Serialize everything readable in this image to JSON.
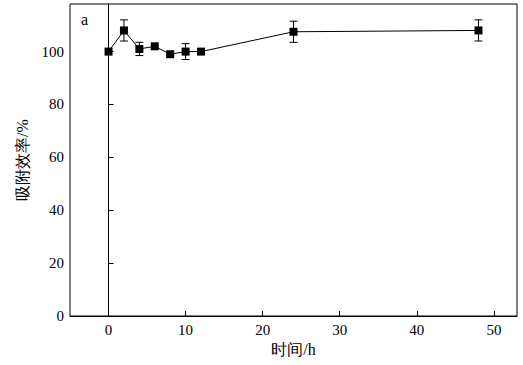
{
  "chart_data": {
    "type": "line",
    "title": "a",
    "x_label": "时间/h",
    "y_label": "吸附效率/%",
    "x": [
      0,
      2,
      4,
      6,
      8,
      10,
      12,
      24,
      48
    ],
    "series": [
      {
        "color": "#000000",
        "marker": "square",
        "values": [
          100,
          108,
          101,
          102,
          99,
          100,
          100,
          107.5,
          108
        ],
        "errors": [
          0,
          4,
          2.5,
          0,
          0,
          3,
          0,
          4,
          4
        ]
      }
    ],
    "xlim": [
      -5,
      53
    ],
    "xticks": [
      0,
      10,
      20,
      30,
      40,
      50
    ],
    "ylim": [
      0,
      118
    ],
    "yticks": [
      0,
      20,
      40,
      60,
      80,
      100
    ],
    "grid": false
  }
}
